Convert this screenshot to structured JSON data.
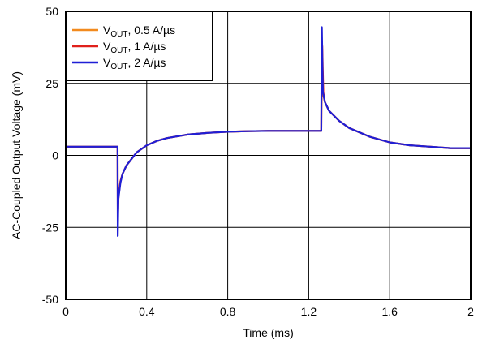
{
  "chart_data": {
    "type": "line",
    "xlabel": "Time (ms)",
    "ylabel": "AC-Coupled Output Voltage (mV)",
    "xlim": [
      0,
      2
    ],
    "ylim": [
      -50,
      50
    ],
    "x_ticks": [
      0,
      0.4,
      0.8,
      1.2,
      1.6,
      2
    ],
    "x_tick_labels": [
      "0",
      "0.4",
      "0.8",
      "1.2",
      "1.6",
      "2"
    ],
    "y_ticks": [
      -50,
      -25,
      0,
      25,
      50
    ],
    "y_tick_labels": [
      "-50",
      "-25",
      "0",
      "25",
      "50"
    ],
    "grid": true,
    "legend_position": "top-left",
    "series": [
      {
        "name_main": "V",
        "name_sub": "OUT",
        "name_rest": ", 0.5 A/µs",
        "color": "#f28a1e",
        "x": [
          0,
          0.2,
          0.256,
          0.257,
          0.262,
          0.27,
          0.28,
          0.3,
          0.35,
          0.4,
          0.45,
          0.5,
          0.6,
          0.7,
          0.8,
          0.9,
          1.0,
          1.1,
          1.2,
          1.262,
          1.263,
          1.268,
          1.272,
          1.28,
          1.3,
          1.35,
          1.4,
          1.5,
          1.6,
          1.7,
          1.8,
          1.9,
          2.0
        ],
        "y": [
          3,
          3,
          3,
          -18,
          -13,
          -9,
          -6.5,
          -3.5,
          1,
          3.5,
          5,
          6,
          7.2,
          7.8,
          8.2,
          8.4,
          8.5,
          8.5,
          8.5,
          8.5,
          16,
          30,
          21,
          18.5,
          15.5,
          12,
          9.5,
          6.5,
          4.5,
          3.5,
          3,
          2.5,
          2.5
        ]
      },
      {
        "name_main": "V",
        "name_sub": "OUT",
        "name_rest": ", 1 A/µs",
        "color": "#e0201b",
        "x": [
          0,
          0.2,
          0.256,
          0.257,
          0.261,
          0.27,
          0.28,
          0.3,
          0.35,
          0.4,
          0.45,
          0.5,
          0.6,
          0.7,
          0.8,
          0.9,
          1.0,
          1.1,
          1.2,
          1.262,
          1.263,
          1.267,
          1.272,
          1.28,
          1.3,
          1.35,
          1.4,
          1.5,
          1.6,
          1.7,
          1.8,
          1.9,
          2.0
        ],
        "y": [
          3,
          3,
          3,
          -22,
          -14,
          -9,
          -6.5,
          -3.5,
          1,
          3.5,
          5,
          6,
          7.2,
          7.8,
          8.2,
          8.4,
          8.5,
          8.5,
          8.5,
          8.5,
          20,
          38,
          22,
          18.5,
          15.5,
          12,
          9.5,
          6.5,
          4.5,
          3.5,
          3,
          2.5,
          2.5
        ]
      },
      {
        "name_main": "V",
        "name_sub": "OUT",
        "name_rest": ", 2 A/µs",
        "color": "#1f1fd6",
        "x": [
          0,
          0.2,
          0.256,
          0.257,
          0.26,
          0.27,
          0.28,
          0.3,
          0.35,
          0.4,
          0.45,
          0.5,
          0.6,
          0.7,
          0.8,
          0.9,
          1.0,
          1.1,
          1.2,
          1.262,
          1.263,
          1.265,
          1.27,
          1.28,
          1.3,
          1.35,
          1.4,
          1.5,
          1.6,
          1.7,
          1.8,
          1.9,
          2.0
        ],
        "y": [
          3,
          3,
          3,
          -28,
          -15,
          -9.5,
          -6.5,
          -3.5,
          1,
          3.5,
          5,
          6,
          7.2,
          7.8,
          8.2,
          8.4,
          8.5,
          8.5,
          8.5,
          8.5,
          25,
          44.5,
          22,
          18.5,
          15.5,
          12,
          9.5,
          6.5,
          4.5,
          3.5,
          3,
          2.5,
          2.5
        ]
      }
    ]
  }
}
